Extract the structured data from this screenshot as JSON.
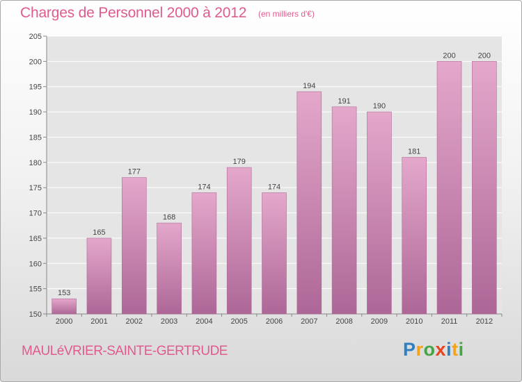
{
  "title": "Charges de Personnel 2000 à 2012",
  "unit_note": "(en milliers d'€)",
  "commune": "MAULéVRIER-SAINTE-GERTRUDE",
  "logo": {
    "text": "Proxiti",
    "letters": [
      {
        "char": "P",
        "color": "#2f7fc1"
      },
      {
        "char": "r",
        "color": "#f3a21b"
      },
      {
        "char": "o",
        "color": "#43a543"
      },
      {
        "char": "x",
        "color": "#e8421f"
      },
      {
        "char": "i",
        "color": "#2f7fc1"
      },
      {
        "char": "t",
        "color": "#f3a21b"
      },
      {
        "char": "i",
        "color": "#43a543"
      }
    ]
  },
  "chart_data": {
    "type": "bar",
    "title": "Charges de Personnel 2000 à 2012",
    "subtitle": "(en milliers d'€)",
    "categories": [
      "2000",
      "2001",
      "2002",
      "2003",
      "2004",
      "2005",
      "2006",
      "2007",
      "2008",
      "2009",
      "2010",
      "2011",
      "2012"
    ],
    "values": [
      153,
      165,
      177,
      168,
      174,
      179,
      174,
      194,
      191,
      190,
      181,
      200,
      200
    ],
    "ylim": [
      150,
      205
    ],
    "yticks": [
      150,
      155,
      160,
      165,
      170,
      175,
      180,
      185,
      190,
      195,
      200,
      205
    ],
    "grid": true,
    "bar_color": "#c86a9c"
  }
}
